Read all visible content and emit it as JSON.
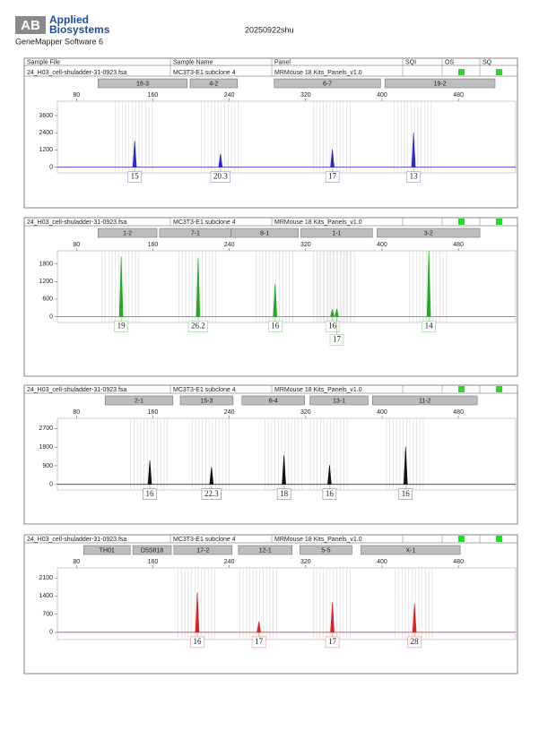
{
  "header": {
    "logo_mark": "AB",
    "brand_line1": "Applied",
    "brand_line2": "Biosystems",
    "software": "GeneMapper Software 6",
    "title": "20250922shu"
  },
  "columns": [
    "Sample File",
    "Sample Name",
    "Panel",
    "SQI",
    "OS",
    "SQ"
  ],
  "panels": [
    {
      "sample_file": "24_H03_cell-shuladder-31-0923.fsa",
      "sample_name": "MC3T3-E1 subclone 4",
      "panel": "MRMouse 18 Kits_Panels_v1.0",
      "color": "#2a2ad0",
      "xlim": [
        60,
        540
      ],
      "xticks": [
        80,
        160,
        240,
        320,
        400,
        480
      ],
      "ylim": [
        -400,
        4600
      ],
      "yticks": [
        0,
        1200,
        2400,
        3600
      ],
      "markers": [
        {
          "name": "18-3",
          "start": 102.5,
          "end": 196
        },
        {
          "name": "4-2",
          "start": 199,
          "end": 248.6
        },
        {
          "name": "6-7",
          "start": 287,
          "end": 398.5
        },
        {
          "name": "19-2",
          "start": 403,
          "end": 518.4
        }
      ],
      "peaks": [
        {
          "x": 140.9,
          "height": 1860,
          "label": "15"
        },
        {
          "x": 230.8,
          "height": 930,
          "label": "20.3"
        },
        {
          "x": 348,
          "height": 1240,
          "label": "17"
        },
        {
          "x": 433,
          "height": 2420,
          "label": "13"
        }
      ]
    },
    {
      "sample_file": "24_H03_cell-shuladder-31-0923.fsa",
      "sample_name": "MC3T3-E1 subclone 4",
      "panel": "MRMouse 18 Kits_Panels_v1.0",
      "color": "#22aa22",
      "xlim": [
        60,
        540
      ],
      "xticks": [
        80,
        160,
        240,
        320,
        400,
        480
      ],
      "ylim": [
        -200,
        2250
      ],
      "yticks": [
        0,
        600,
        1200,
        1800
      ],
      "markers": [
        {
          "name": "1-2",
          "start": 102.5,
          "end": 164.3
        },
        {
          "name": "7-1",
          "start": 167,
          "end": 242
        },
        {
          "name": "8-1",
          "start": 242,
          "end": 312.3
        },
        {
          "name": "1-1",
          "start": 315,
          "end": 390
        },
        {
          "name": "3-2",
          "start": 394.8,
          "end": 502.5
        }
      ],
      "peaks": [
        {
          "x": 126.8,
          "height": 2050,
          "label": "19"
        },
        {
          "x": 207.4,
          "height": 1990,
          "label": "26.2"
        },
        {
          "x": 288,
          "height": 1120,
          "label": "16"
        },
        {
          "x": 348,
          "height": 250,
          "label": "16"
        },
        {
          "x": 352.6,
          "height": 260,
          "label": "17"
        },
        {
          "x": 449,
          "height": 2270,
          "label": "14"
        }
      ]
    },
    {
      "sample_file": "24_H03_cell-shuladder-31-0923.fsa",
      "sample_name": "MC3T3-E1 subclone 4",
      "panel": "MRMouse 18 Kits_Panels_v1.0",
      "color": "#111111",
      "xlim": [
        60,
        540
      ],
      "xticks": [
        80,
        160,
        240,
        320,
        400,
        480
      ],
      "ylim": [
        -270,
        3190
      ],
      "yticks": [
        0,
        900,
        1800,
        2700
      ],
      "markers": [
        {
          "name": "2-1",
          "start": 110,
          "end": 181
        },
        {
          "name": "15-3",
          "start": 188.7,
          "end": 244
        },
        {
          "name": "6-4",
          "start": 253.3,
          "end": 319
        },
        {
          "name": "13-1",
          "start": 324.5,
          "end": 385.4
        },
        {
          "name": "11-2",
          "start": 390,
          "end": 499.7
        }
      ],
      "peaks": [
        {
          "x": 156.8,
          "height": 1150,
          "label": "16"
        },
        {
          "x": 221.4,
          "height": 840,
          "label": "22.3"
        },
        {
          "x": 297.3,
          "height": 1420,
          "label": "18"
        },
        {
          "x": 345,
          "height": 930,
          "label": "16"
        },
        {
          "x": 424.7,
          "height": 1820,
          "label": "16"
        }
      ]
    },
    {
      "sample_file": "24_H03_cell-shuladder-31-0923.fsa",
      "sample_name": "MC3T3-E1 subclone 4",
      "panel": "MRMouse 18 Kits_Panels_v1.0",
      "color": "#e02020",
      "xlim": [
        60,
        540
      ],
      "xticks": [
        80,
        160,
        240,
        320,
        400,
        480
      ],
      "ylim": [
        -280,
        2485
      ],
      "yticks": [
        0,
        700,
        1400,
        2100
      ],
      "markers": [
        {
          "name": "TH01",
          "start": 87.5,
          "end": 136.2
        },
        {
          "name": "D5S818",
          "start": 139,
          "end": 179.3
        },
        {
          "name": "17-2",
          "start": 182,
          "end": 243
        },
        {
          "name": "12-1",
          "start": 249.6,
          "end": 305.8
        },
        {
          "name": "5-5",
          "start": 314,
          "end": 368.5
        },
        {
          "name": "X-1",
          "start": 377.9,
          "end": 481.9
        }
      ],
      "peaks": [
        {
          "x": 206.5,
          "height": 1540,
          "label": "16"
        },
        {
          "x": 271,
          "height": 420,
          "label": "17"
        },
        {
          "x": 348,
          "height": 1155,
          "label": "17"
        },
        {
          "x": 434,
          "height": 1120,
          "label": "28"
        }
      ]
    }
  ]
}
